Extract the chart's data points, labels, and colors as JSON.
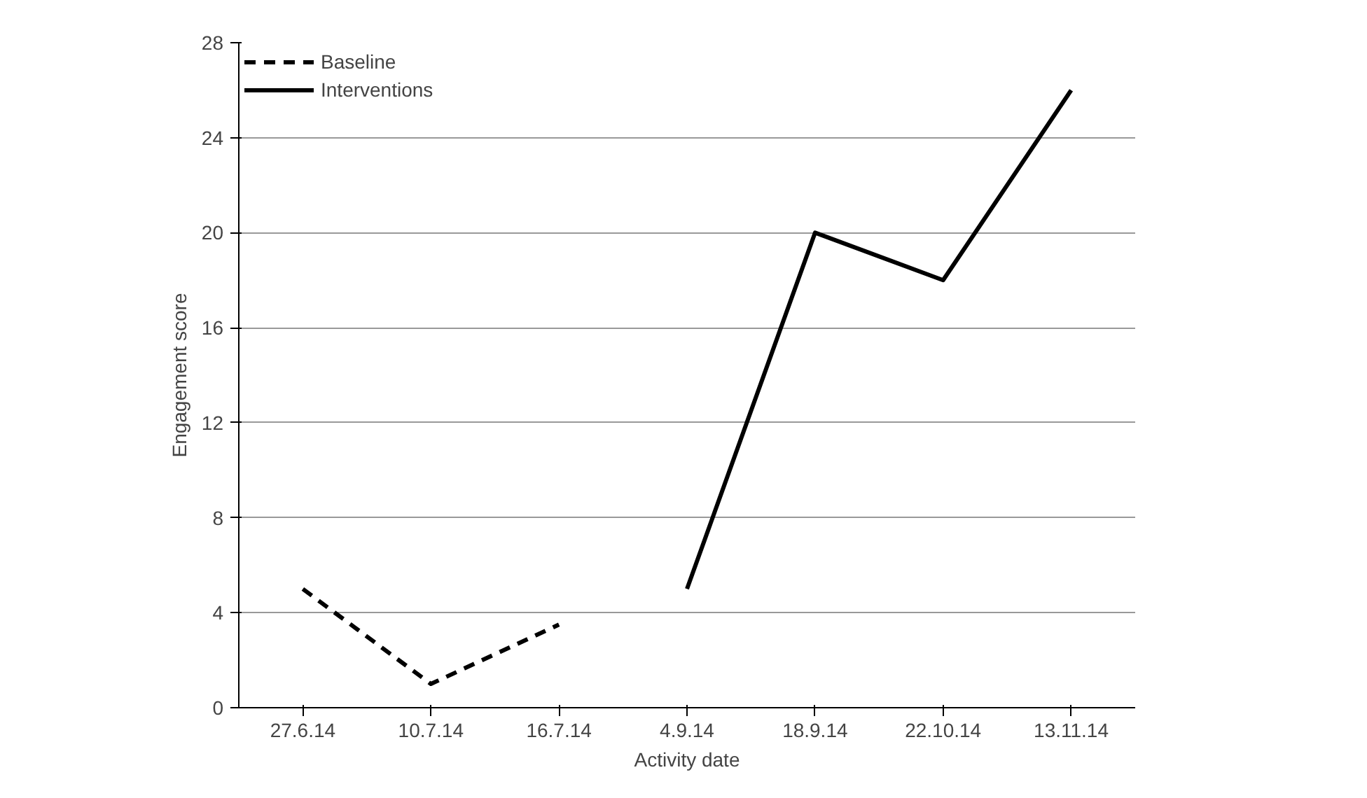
{
  "chart_data": {
    "type": "line",
    "xlabel": "Activity date",
    "ylabel": "Engagement score",
    "categories": [
      "27.6.14",
      "10.7.14",
      "16.7.14",
      "4.9.14",
      "18.9.14",
      "22.10.14",
      "13.11.14"
    ],
    "series": [
      {
        "name": "Baseline",
        "color": "#000000",
        "line_style": "dashed",
        "values": [
          5,
          1,
          3.5,
          null,
          null,
          null,
          null
        ]
      },
      {
        "name": "Interventions",
        "color": "#000000",
        "line_style": "solid",
        "values": [
          null,
          null,
          null,
          5,
          20,
          18,
          26
        ]
      }
    ],
    "ylim": [
      0,
      28
    ],
    "yticks": [
      0,
      4,
      8,
      12,
      16,
      20,
      24,
      28
    ],
    "grid": "y",
    "legend": "top left"
  }
}
